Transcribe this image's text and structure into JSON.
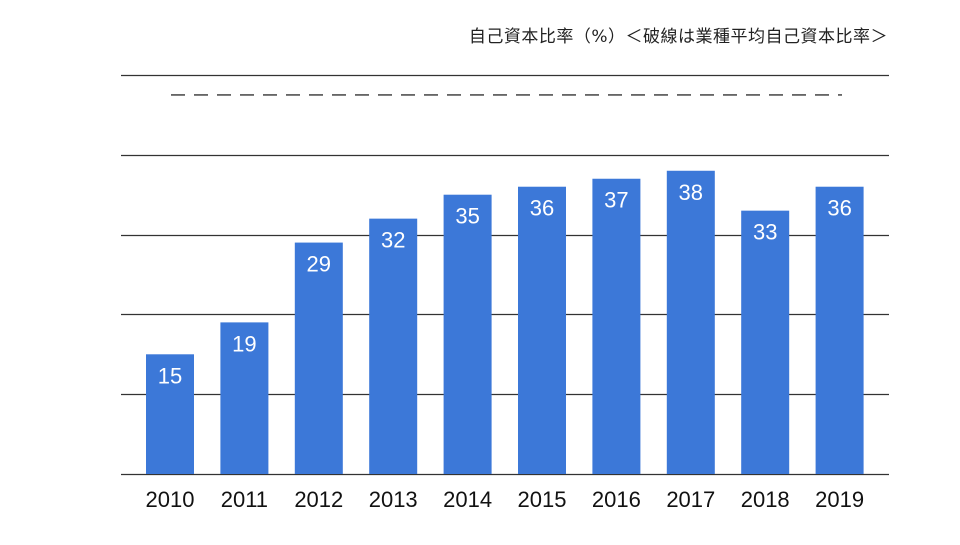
{
  "chart_data": {
    "type": "bar",
    "title": "自己資本比率（%）＜破線は業種平均自己資本比率＞",
    "xlabel": "",
    "ylabel": "",
    "categories": [
      "2010",
      "2011",
      "2012",
      "2013",
      "2014",
      "2015",
      "2016",
      "2017",
      "2018",
      "2019"
    ],
    "values": [
      15,
      19,
      29,
      32,
      35,
      36,
      37,
      38,
      33,
      36
    ],
    "data_labels": [
      "15",
      "19",
      "29",
      "32",
      "35",
      "36",
      "37",
      "38",
      "33",
      "36"
    ],
    "ylim": [
      0,
      50
    ],
    "gridlines": [
      0,
      10,
      20,
      30,
      40,
      50
    ],
    "y_tick_labels_visible": false,
    "reference_line": {
      "style": "dashed",
      "value": 47.5,
      "description_in_title": "破線は業種平均自己資本比率"
    },
    "grid": true,
    "legend": "none"
  },
  "colors": {
    "bar": "#3c78d8",
    "bar_label": "#ffffff",
    "gridline": "#333333",
    "dashed_line": "#333333",
    "axis_text": "#111111"
  }
}
